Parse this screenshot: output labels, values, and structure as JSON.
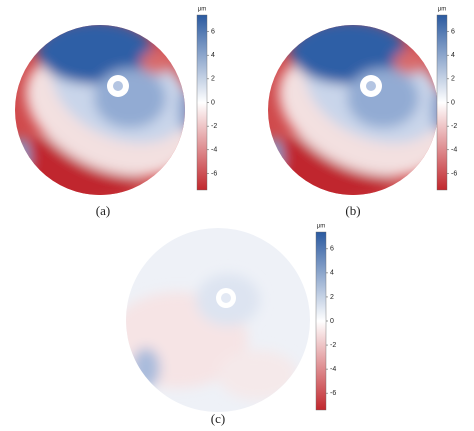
{
  "chart_data": [
    {
      "type": "heatmap",
      "unit": "μm",
      "clim": [
        -7.4,
        7.4
      ],
      "yticks": [
        6,
        4,
        2,
        0,
        -2,
        -4,
        -6
      ],
      "colors": [
        "#c1272d",
        "#ffffff",
        "#2b5aa0"
      ],
      "caption": "(a)"
    },
    {
      "type": "heatmap",
      "unit": "μm",
      "clim": [
        -7.4,
        7.4
      ],
      "yticks": [
        6,
        4,
        2,
        0,
        -2,
        -4,
        -6
      ],
      "colors": [
        "#c1272d",
        "#ffffff",
        "#2b5aa0"
      ],
      "caption": "(b)"
    },
    {
      "type": "heatmap",
      "unit": "μm",
      "clim": [
        -7.4,
        7.4
      ],
      "yticks": [
        6,
        4,
        2,
        0,
        -2,
        -4,
        -6
      ],
      "colors": [
        "#c1272d",
        "#ffffff",
        "#2b5aa0"
      ],
      "caption": "(c)"
    }
  ]
}
